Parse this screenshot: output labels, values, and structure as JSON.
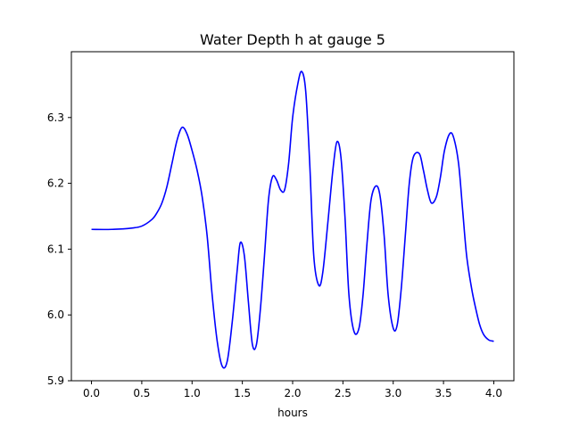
{
  "chart_data": {
    "type": "line",
    "title": "Water Depth h at gauge 5",
    "xlabel": "hours",
    "ylabel": "",
    "xlim": [
      -0.2,
      4.2
    ],
    "ylim": [
      5.9,
      6.4
    ],
    "grid": false,
    "xticks": [
      {
        "value": 0.0,
        "label": "0.0"
      },
      {
        "value": 0.5,
        "label": "0.5"
      },
      {
        "value": 1.0,
        "label": "1.0"
      },
      {
        "value": 1.5,
        "label": "1.5"
      },
      {
        "value": 2.0,
        "label": "2.0"
      },
      {
        "value": 2.5,
        "label": "2.5"
      },
      {
        "value": 3.0,
        "label": "3.0"
      },
      {
        "value": 3.5,
        "label": "3.5"
      },
      {
        "value": 4.0,
        "label": "4.0"
      }
    ],
    "yticks": [
      {
        "value": 5.9,
        "label": "5.9"
      },
      {
        "value": 6.0,
        "label": "6.0"
      },
      {
        "value": 6.1,
        "label": "6.1"
      },
      {
        "value": 6.2,
        "label": "6.2"
      },
      {
        "value": 6.3,
        "label": "6.3"
      }
    ],
    "series": [
      {
        "color": "#0000ff",
        "x": [
          0.0,
          0.2,
          0.4,
          0.5,
          0.6,
          0.65,
          0.7,
          0.75,
          0.8,
          0.85,
          0.9,
          0.95,
          1.0,
          1.05,
          1.1,
          1.15,
          1.2,
          1.25,
          1.3,
          1.35,
          1.4,
          1.45,
          1.48,
          1.52,
          1.56,
          1.6,
          1.64,
          1.68,
          1.72,
          1.76,
          1.8,
          1.84,
          1.88,
          1.92,
          1.96,
          2.0,
          2.05,
          2.09,
          2.13,
          2.17,
          2.21,
          2.26,
          2.3,
          2.35,
          2.4,
          2.44,
          2.48,
          2.52,
          2.56,
          2.61,
          2.66,
          2.7,
          2.74,
          2.78,
          2.83,
          2.87,
          2.91,
          2.95,
          3.0,
          3.04,
          3.08,
          3.12,
          3.16,
          3.2,
          3.26,
          3.3,
          3.34,
          3.38,
          3.43,
          3.47,
          3.51,
          3.56,
          3.6,
          3.65,
          3.69,
          3.73,
          3.78,
          3.82,
          3.86,
          3.9,
          3.95,
          4.0
        ],
        "y": [
          6.13,
          6.13,
          6.132,
          6.135,
          6.145,
          6.155,
          6.17,
          6.195,
          6.23,
          6.265,
          6.285,
          6.275,
          6.25,
          6.22,
          6.18,
          6.12,
          6.03,
          5.96,
          5.922,
          5.93,
          5.99,
          6.07,
          6.11,
          6.09,
          6.02,
          5.955,
          5.955,
          6.01,
          6.09,
          6.175,
          6.21,
          6.205,
          6.19,
          6.19,
          6.23,
          6.3,
          6.35,
          6.37,
          6.34,
          6.23,
          6.09,
          6.045,
          6.065,
          6.14,
          6.22,
          6.263,
          6.24,
          6.15,
          6.03,
          5.975,
          5.98,
          6.03,
          6.11,
          6.175,
          6.196,
          6.18,
          6.12,
          6.03,
          5.98,
          5.985,
          6.04,
          6.12,
          6.2,
          6.24,
          6.245,
          6.22,
          6.19,
          6.17,
          6.18,
          6.21,
          6.25,
          6.275,
          6.27,
          6.23,
          6.16,
          6.09,
          6.04,
          6.01,
          5.985,
          5.97,
          5.962,
          5.96
        ]
      }
    ]
  }
}
